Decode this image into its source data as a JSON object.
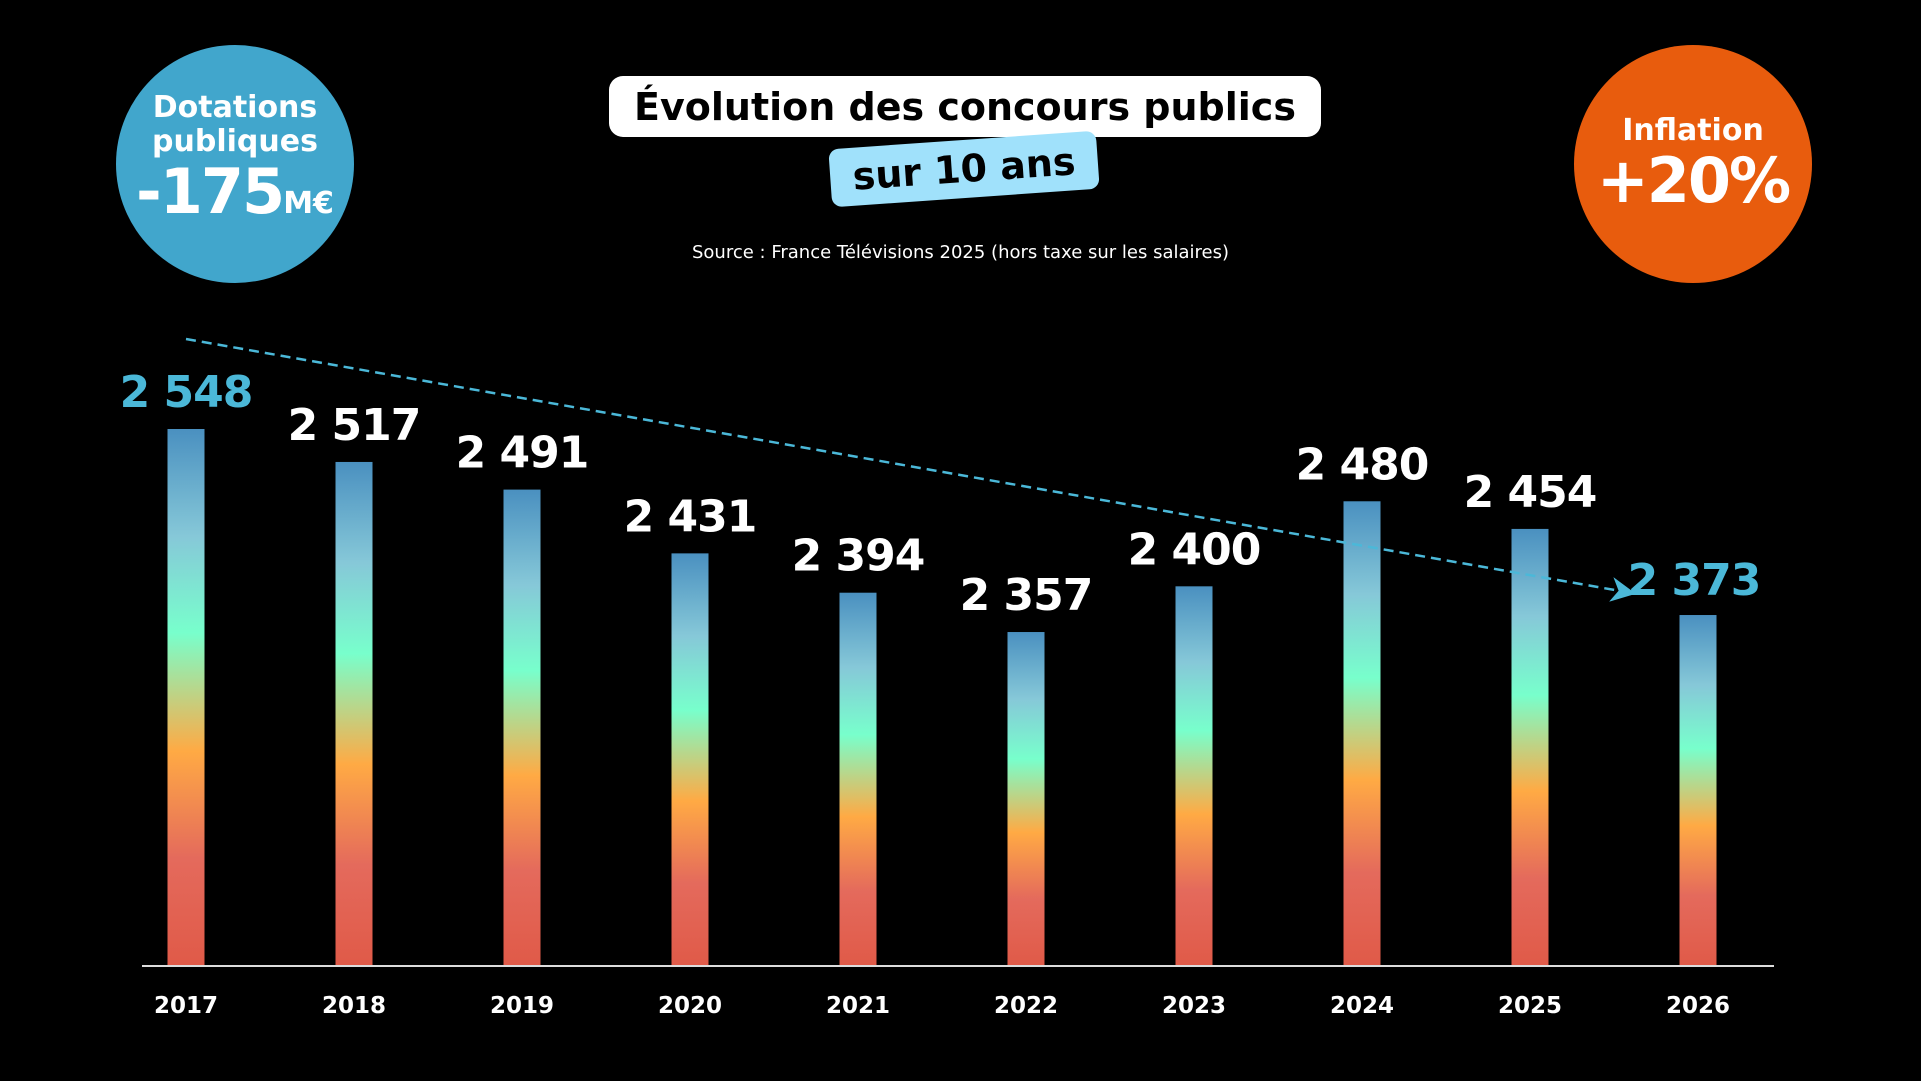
{
  "left_badge": {
    "line1": "Dotations",
    "line2": "publiques",
    "value": "-175",
    "unit": "M€",
    "color": "#41a6cc"
  },
  "right_badge": {
    "line1": "Inflation",
    "value": "+20%",
    "color": "#e85c0d"
  },
  "header": {
    "title": "Évolution des concours publics",
    "subtitle": "sur 10 ans",
    "source": "Source : France Télévisions 2025 (hors taxe sur les salaires)"
  },
  "chart_data": {
    "type": "bar",
    "categories": [
      "2017",
      "2018",
      "2019",
      "2020",
      "2021",
      "2022",
      "2023",
      "2024",
      "2025",
      "2026"
    ],
    "values": [
      2548,
      2517,
      2491,
      2431,
      2394,
      2357,
      2400,
      2480,
      2454,
      2373
    ],
    "labels": [
      "2 548",
      "2 517",
      "2 491",
      "2 431",
      "2 394",
      "2 357",
      "2 400",
      "2 480",
      "2 454",
      "2 373"
    ],
    "highlighted": [
      "2017",
      "2026"
    ],
    "highlight_color": "#4bb8d8",
    "bar_gradient": [
      "#4a90c0",
      "#78ffcc",
      "#ffaa44",
      "#e05a48"
    ],
    "trend_line": {
      "from": "2017",
      "to": "2026",
      "style": "dashed",
      "color": "#4bb8d8"
    },
    "xlabel": "",
    "ylabel": "",
    "grid": false
  }
}
